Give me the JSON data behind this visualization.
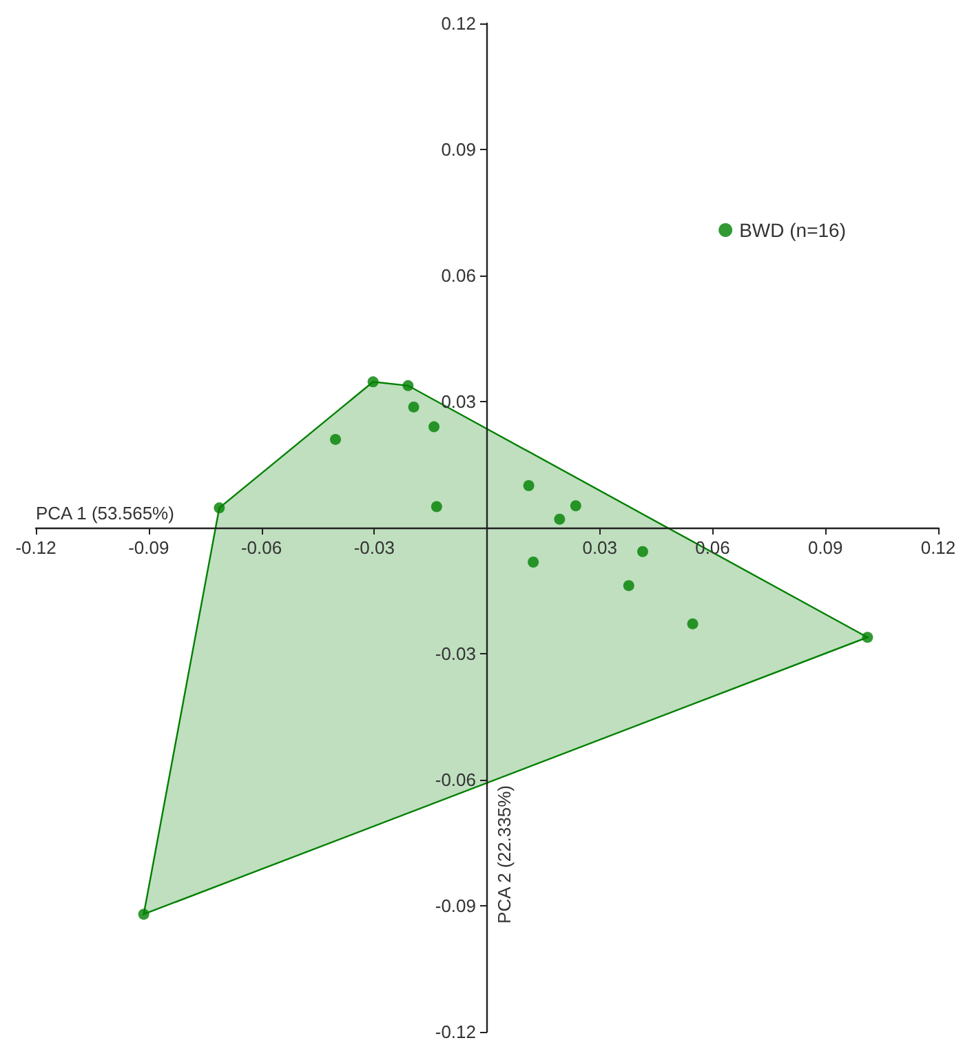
{
  "chart_data": {
    "type": "scatter",
    "xlabel": "PCA 1 (53.565%)",
    "ylabel": "PCA 2 (22.335%)",
    "xlim": [
      -0.12,
      0.12
    ],
    "ylim": [
      -0.12,
      0.12
    ],
    "xticks": [
      -0.12,
      -0.09,
      -0.06,
      -0.03,
      0.03,
      0.06,
      0.09,
      0.12
    ],
    "yticks": [
      -0.12,
      -0.09,
      -0.06,
      -0.03,
      0.03,
      0.06,
      0.09,
      0.12
    ],
    "grid": false,
    "legend": "top right",
    "marker": "circle",
    "series": [
      {
        "name": "BWD (n=16)",
        "color": "#008000",
        "x": [
          -0.0712,
          -0.0303,
          -0.021,
          -0.0195,
          -0.0141,
          -0.0403,
          -0.0134,
          0.0111,
          0.0236,
          0.0193,
          0.0123,
          0.0414,
          0.0377,
          0.0547,
          0.1012,
          -0.0913
        ],
        "values": [
          0.0047,
          0.0347,
          0.0338,
          0.0287,
          0.024,
          0.021,
          0.005,
          0.01,
          0.0052,
          0.002,
          -0.0082,
          -0.0057,
          -0.0138,
          -0.0229,
          -0.0261,
          -0.092
        ]
      }
    ]
  }
}
